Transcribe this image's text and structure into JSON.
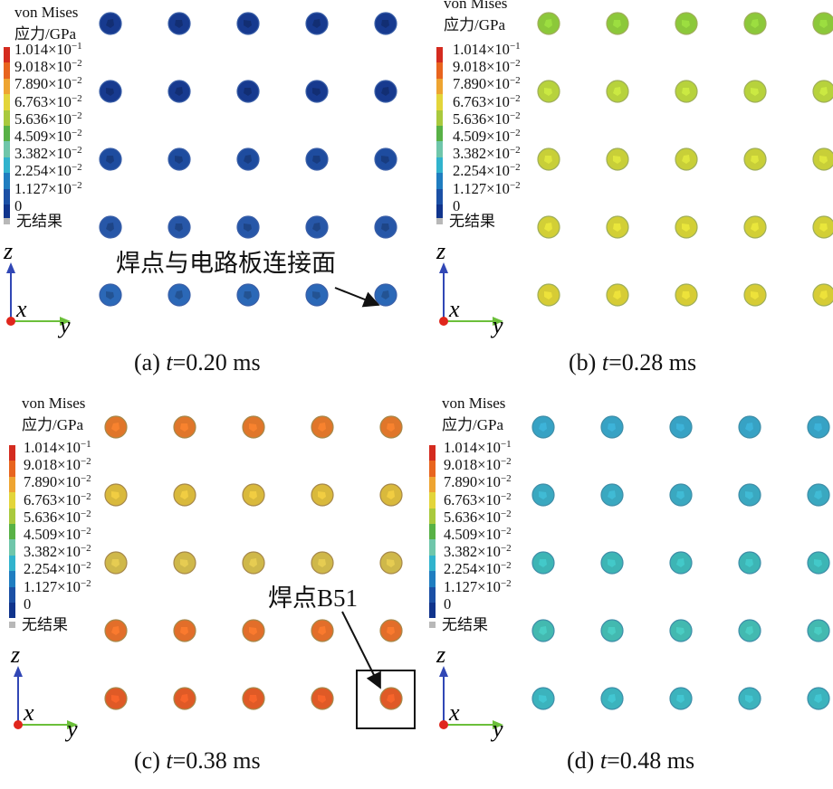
{
  "legend": {
    "title_line1": "von Mises",
    "title_line2": "应力/GPa",
    "ticks": [
      {
        "mantissa": "1.014×10",
        "exp": "−1"
      },
      {
        "mantissa": "9.018×10",
        "exp": "−2"
      },
      {
        "mantissa": "7.890×10",
        "exp": "−2"
      },
      {
        "mantissa": "6.763×10",
        "exp": "−2"
      },
      {
        "mantissa": "5.636×10",
        "exp": "−2"
      },
      {
        "mantissa": "4.509×10",
        "exp": "−2"
      },
      {
        "mantissa": "3.382×10",
        "exp": "−2"
      },
      {
        "mantissa": "2.254×10",
        "exp": "−2"
      },
      {
        "mantissa": "1.127×10",
        "exp": "−2"
      },
      {
        "mantissa": "0",
        "exp": ""
      }
    ],
    "no_result": "无结果",
    "colors": [
      "#d42b1f",
      "#e8641e",
      "#eea431",
      "#e3d53a",
      "#a9c93d",
      "#58b146",
      "#6fc6aa",
      "#31b3cd",
      "#1f7dc0",
      "#1b50a5",
      "#10348c"
    ]
  },
  "axes": {
    "z": "z",
    "x": "x",
    "y": "y"
  },
  "panels": [
    {
      "caption_prefix": "(a) ",
      "caption_var": "t",
      "caption_value": "=0.20 ms",
      "row_colors": [
        "#173a8f",
        "#173a8f",
        "#1e4c9f",
        "#2757a8",
        "#2b68b7"
      ],
      "border": "#3a5fa8"
    },
    {
      "caption_prefix": "(b) ",
      "caption_var": "t",
      "caption_value": "=0.28 ms",
      "row_colors": [
        "#8cc83a",
        "#b7d23c",
        "#c8cf38",
        "#d2cf36",
        "#d6cc35"
      ],
      "border": "#9fae5a"
    },
    {
      "caption_prefix": "(c) ",
      "caption_var": "t",
      "caption_value": "=0.38 ms",
      "row_colors": [
        "#e0762a",
        "#d9b93c",
        "#cfb84a",
        "#e26e2a",
        "#df5a26"
      ],
      "border": "#a6884a"
    },
    {
      "caption_prefix": "(d) ",
      "caption_var": "t",
      "caption_value": "=0.48 ms",
      "row_colors": [
        "#37a2c4",
        "#3aa8c0",
        "#3db5b5",
        "#43b9b0",
        "#3cb3bd"
      ],
      "border": "#3f8ea8"
    }
  ],
  "annotations": {
    "interface": "焊点与电路板连接面",
    "joint": "焊点B51"
  }
}
